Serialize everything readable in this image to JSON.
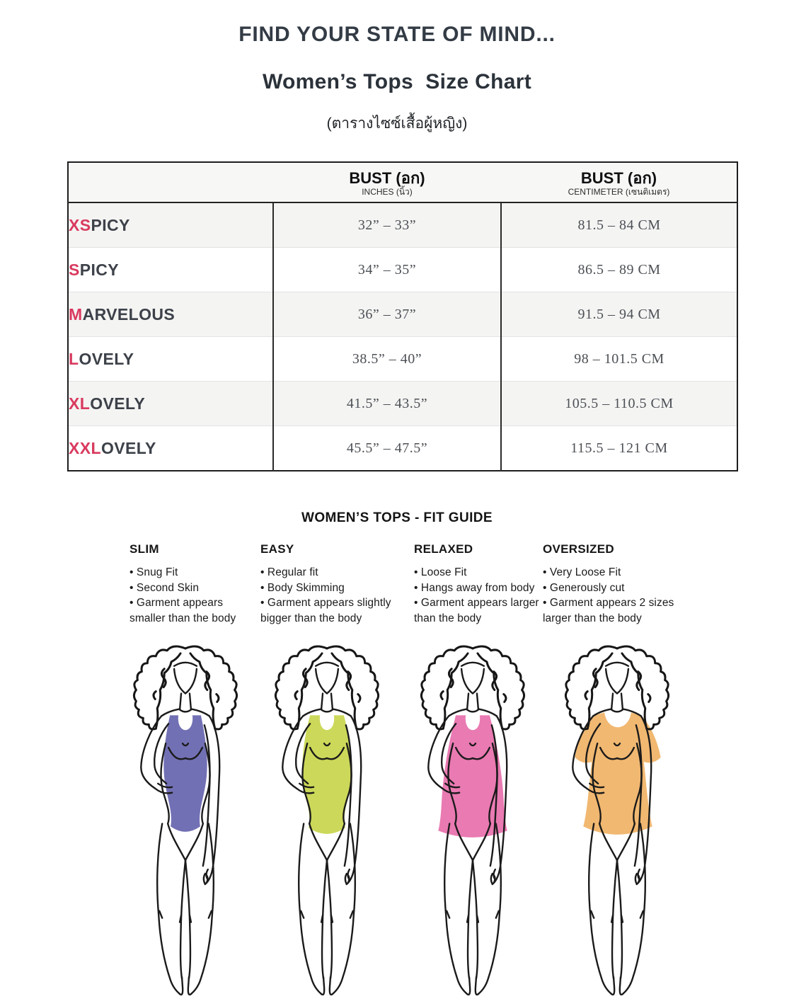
{
  "header": {
    "title": "FIND YOUR STATE OF MIND...",
    "subtitle": "Women’s Tops  Size Chart",
    "subtitle_thai": "(ตารางไซซ์เสื้อผู้หญิง)"
  },
  "size_table": {
    "accent_color": "#d93a5f",
    "name_color": "#3d4149",
    "col_headers": [
      {
        "main": "",
        "sub": ""
      },
      {
        "main": "BUST (อก)",
        "sub": "INCHES (นิ้ว)"
      },
      {
        "main": "BUST (อก)",
        "sub": "CENTIMETER (เซนติเมตร)"
      }
    ],
    "rows": [
      {
        "size_prefix": "XS",
        "size_rest": "PICY",
        "inches": "32” – 33”",
        "cm": "81.5 – 84 CM"
      },
      {
        "size_prefix": "S",
        "size_rest": "PICY",
        "inches": "34” – 35”",
        "cm": "86.5 – 89 CM"
      },
      {
        "size_prefix": "M",
        "size_rest": "ARVELOUS",
        "inches": "36” – 37”",
        "cm": "91.5 – 94 CM"
      },
      {
        "size_prefix": "L",
        "size_rest": "OVELY",
        "inches": "38.5” – 40”",
        "cm": "98 – 101.5 CM"
      },
      {
        "size_prefix": "XL",
        "size_rest": "OVELY",
        "inches": "41.5” – 43.5”",
        "cm": "105.5 – 110.5 CM"
      },
      {
        "size_prefix": "XXL",
        "size_rest": "OVELY",
        "inches": "45.5” – 47.5”",
        "cm": "115.5 – 121 CM"
      }
    ]
  },
  "fit_guide": {
    "title": "WOMEN’S TOPS - FIT GUIDE",
    "bullet_glyph": "•",
    "columns": [
      {
        "heading": "SLIM",
        "bullets": [
          "Snug Fit",
          "Second Skin",
          "Garment appears smaller than the body"
        ]
      },
      {
        "heading": "EASY",
        "bullets": [
          "Regular fit",
          "Body Skimming",
          "Garment appears slightly bigger than the body"
        ]
      },
      {
        "heading": "RELAXED",
        "bullets": [
          "Loose Fit",
          "Hangs away from body",
          "Garment appears larger than the body"
        ]
      },
      {
        "heading": "OVERSIZED",
        "bullets": [
          "Very Loose Fit",
          "Generously cut",
          "Garment appears 2 sizes larger than the body"
        ]
      }
    ],
    "figures": [
      {
        "fit": "slim",
        "top_color": "#6a68b0"
      },
      {
        "fit": "easy",
        "top_color": "#c9d650"
      },
      {
        "fit": "relaxed",
        "top_color": "#e873ae"
      },
      {
        "fit": "oversized",
        "top_color": "#f0b469"
      }
    ],
    "figure_lefts": [
      162,
      362,
      568,
      772
    ]
  }
}
